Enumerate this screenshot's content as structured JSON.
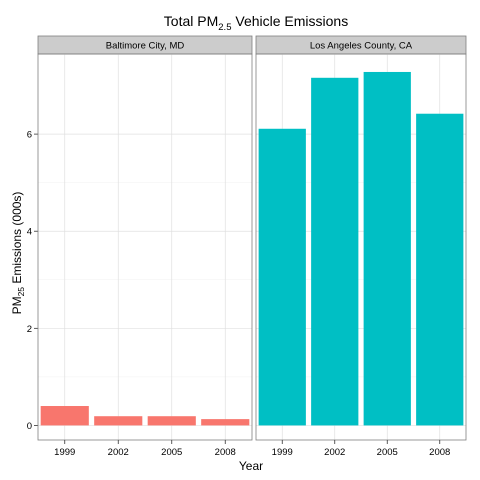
{
  "chart_data": {
    "type": "bar",
    "title_main": "Total PM",
    "title_sub": "2.5",
    "title_rest": " Vehicle Emissions",
    "xlabel": "Year",
    "ylabel_main": "PM",
    "ylabel_sub": "25",
    "ylabel_rest": " Emissions (000s)",
    "ylim": [
      -0.3,
      7.65
    ],
    "yticks": [
      0,
      2,
      4,
      6
    ],
    "ytick_labels": [
      "0",
      "2",
      "4",
      "6"
    ],
    "categories": [
      "1999",
      "2002",
      "2005",
      "2008"
    ],
    "grid": true,
    "facets": [
      {
        "label": "Baltimore City, MD",
        "color": "#F8766D",
        "values": [
          0.4,
          0.19,
          0.19,
          0.13
        ]
      },
      {
        "label": "Los Angeles County, CA",
        "color": "#00BFC4",
        "values": [
          6.11,
          7.16,
          7.28,
          6.42
        ]
      }
    ]
  }
}
